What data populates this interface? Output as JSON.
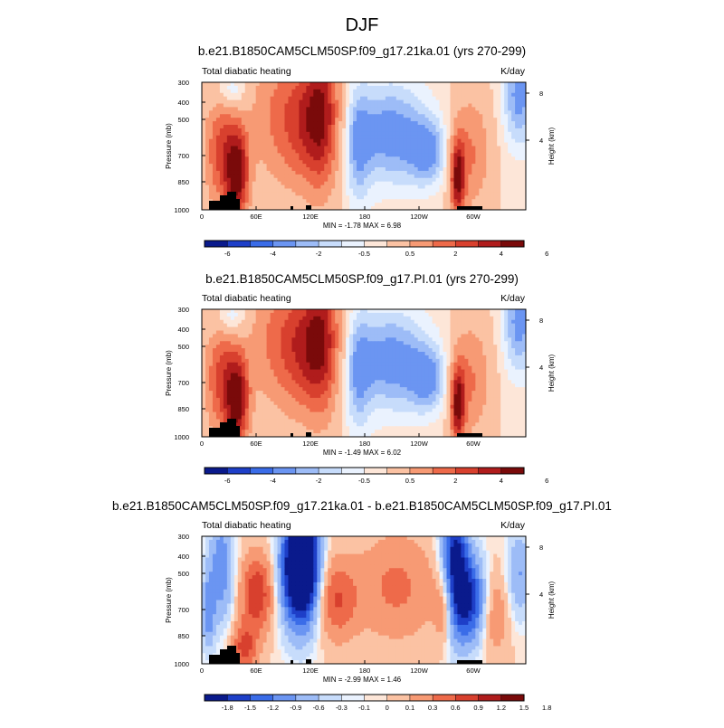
{
  "figure": {
    "title": "DJF"
  },
  "colors": {
    "scale": [
      "#0a1a8c",
      "#1e3fc8",
      "#3a6ce8",
      "#6b95f2",
      "#9dbcf7",
      "#c7dcfb",
      "#eaf2fe",
      "#fde6d8",
      "#fbc2a3",
      "#f79a74",
      "#ee6a4a",
      "#d8402e",
      "#b01c1c",
      "#7a0a0a"
    ],
    "terrain": "#000000"
  },
  "chart_data": [
    {
      "type": "heatmap",
      "id": "panel1",
      "title": "b.e21.B1850CAM5CLM50SP.f09_g17.21ka.01 (yrs 270-299)",
      "left_label": "Total diabatic heating",
      "right_label": "K/day",
      "ylabel": "Pressure (mb)",
      "ylabel_right": "Height (km)",
      "y_ticks": [
        "300",
        "400",
        "500",
        "700",
        "850",
        "1000"
      ],
      "y_right_ticks": [
        "8",
        "4"
      ],
      "x_ticks": [
        "0",
        "60E",
        "120E",
        "180",
        "120W",
        "60W"
      ],
      "stats": "MIN =  -1.78  MAX =   6.98",
      "colorbar_labels": [
        "-6",
        "-4",
        "-2",
        "-0.5",
        "0.5",
        "2",
        "4",
        "6"
      ],
      "min": -1.78,
      "max": 6.98
    },
    {
      "type": "heatmap",
      "id": "panel2",
      "title": "b.e21.B1850CAM5CLM50SP.f09_g17.PI.01 (yrs 270-299)",
      "left_label": "Total diabatic heating",
      "right_label": "K/day",
      "ylabel": "Pressure (mb)",
      "ylabel_right": "Height (km)",
      "y_ticks": [
        "300",
        "400",
        "500",
        "700",
        "850",
        "1000"
      ],
      "y_right_ticks": [
        "8",
        "4"
      ],
      "x_ticks": [
        "0",
        "60E",
        "120E",
        "180",
        "120W",
        "60W"
      ],
      "stats": "MIN =  -1.49  MAX =   6.02",
      "colorbar_labels": [
        "-6",
        "-4",
        "-2",
        "-0.5",
        "0.5",
        "2",
        "4",
        "6"
      ],
      "min": -1.49,
      "max": 6.02
    },
    {
      "type": "heatmap",
      "id": "panel3",
      "title": "b.e21.B1850CAM5CLM50SP.f09_g17.21ka.01 - b.e21.B1850CAM5CLM50SP.f09_g17.PI.01",
      "left_label": "Total diabatic heating",
      "right_label": "K/day",
      "ylabel": "Pressure (mb)",
      "ylabel_right": "Height (km)",
      "y_ticks": [
        "300",
        "400",
        "500",
        "700",
        "850",
        "1000"
      ],
      "y_right_ticks": [
        "8",
        "4"
      ],
      "x_ticks": [
        "0",
        "60E",
        "120E",
        "180",
        "120W",
        "60W"
      ],
      "stats": "MIN =  -2.99  MAX =   1.46",
      "colorbar_labels": [
        "-1.8",
        "-1.5",
        "-1.2",
        "-0.9",
        "-0.6",
        "-0.3",
        "-0.1",
        "0",
        "0.1",
        "0.3",
        "0.6",
        "0.9",
        "1.2",
        "1.5",
        "1.8"
      ],
      "min": -2.99,
      "max": 1.46
    }
  ]
}
